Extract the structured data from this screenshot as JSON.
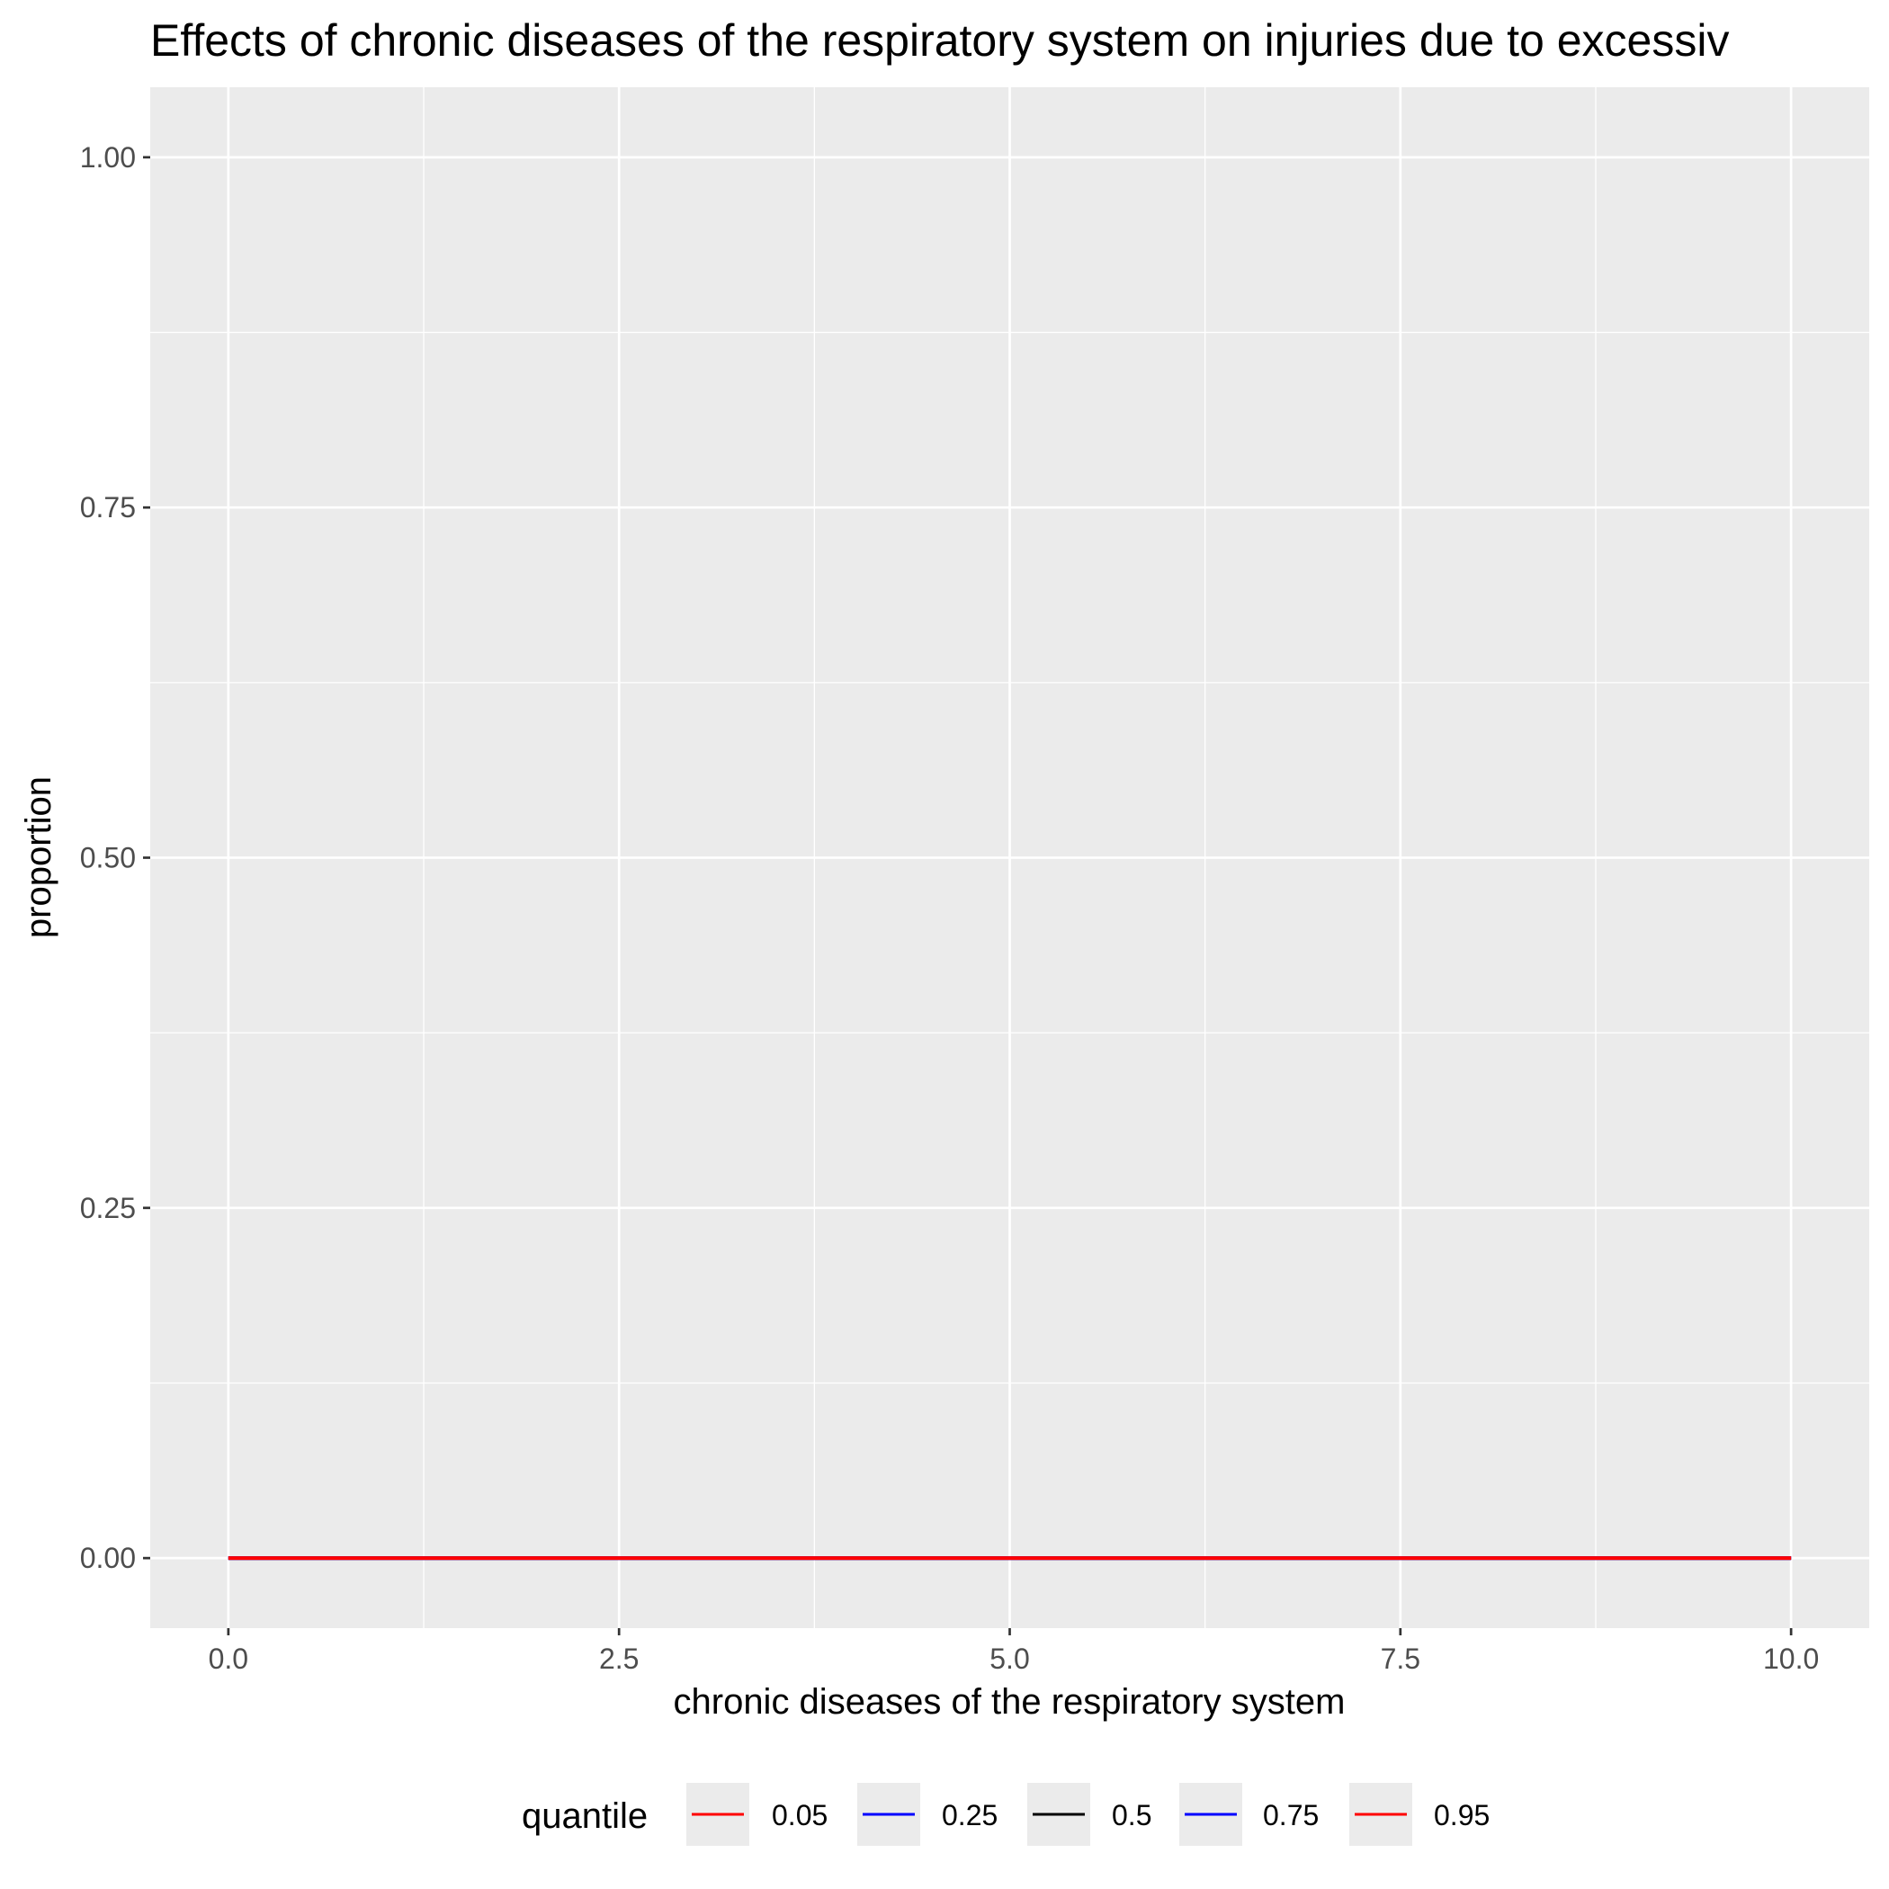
{
  "chart_data": {
    "type": "line",
    "title": "Effects of chronic diseases of the respiratory system on injuries due to excessiv",
    "xlabel": "chronic diseases of the respiratory system",
    "ylabel": "proportion",
    "xlim": [
      -0.5,
      10.5
    ],
    "ylim": [
      -0.05,
      1.05
    ],
    "x_ticks": [
      0,
      2.5,
      5,
      7.5,
      10
    ],
    "x_tick_labels": [
      "0.0",
      "2.5",
      "5.0",
      "7.5",
      "10.0"
    ],
    "y_ticks": [
      0,
      0.25,
      0.5,
      0.75,
      1
    ],
    "y_tick_labels": [
      "0.00",
      "0.25",
      "0.50",
      "0.75",
      "1.00"
    ],
    "grid": true,
    "legend": {
      "title": "quantile",
      "position": "bottom"
    },
    "series": [
      {
        "name": "0.05",
        "color": "#ff0000",
        "x": [
          0,
          10
        ],
        "y": [
          0,
          0
        ]
      },
      {
        "name": "0.25",
        "color": "#0000ff",
        "x": [
          0,
          10
        ],
        "y": [
          0,
          0
        ]
      },
      {
        "name": "0.5",
        "color": "#000000",
        "x": [
          0,
          10
        ],
        "y": [
          0,
          0
        ]
      },
      {
        "name": "0.75",
        "color": "#0000ff",
        "x": [
          0,
          10
        ],
        "y": [
          0,
          0
        ]
      },
      {
        "name": "0.95",
        "color": "#ff0000",
        "x": [
          0,
          10
        ],
        "y": [
          0,
          0
        ]
      }
    ]
  }
}
